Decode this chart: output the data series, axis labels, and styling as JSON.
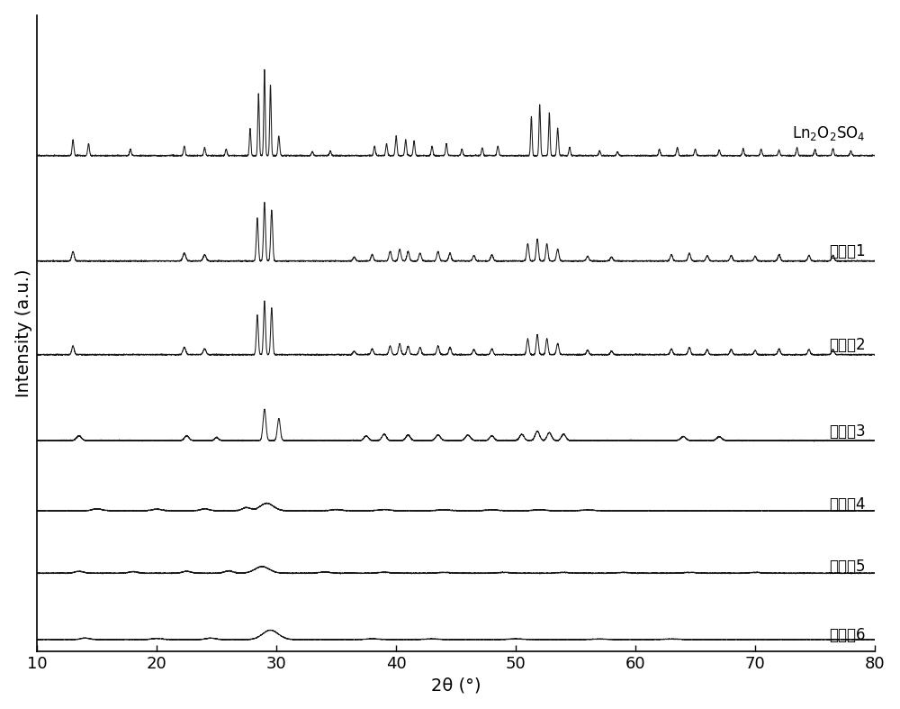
{
  "xlabel": "2θ (°)",
  "ylabel": "Intensity (a.u.)",
  "xlim": [
    10,
    80
  ],
  "xticks": [
    10,
    20,
    30,
    40,
    50,
    60,
    70,
    80
  ],
  "xticklabels": [
    "10",
    "20",
    "30",
    "40",
    "50",
    "60",
    "70",
    "80"
  ],
  "background_color": "#ffffff",
  "line_color": "#1a1a1a",
  "label_ref": "Ln$_2$O$_2$SO$_4$",
  "labels_cn": [
    "实施奡1",
    "实施奡2",
    "实施奡3",
    "实施奡4",
    "实施奡5",
    "实施奡6"
  ],
  "offsets": [
    6.2,
    4.85,
    3.65,
    2.55,
    1.65,
    0.85,
    0.0
  ],
  "font_size_label": 12,
  "font_size_axis": 14,
  "font_size_tick": 13
}
